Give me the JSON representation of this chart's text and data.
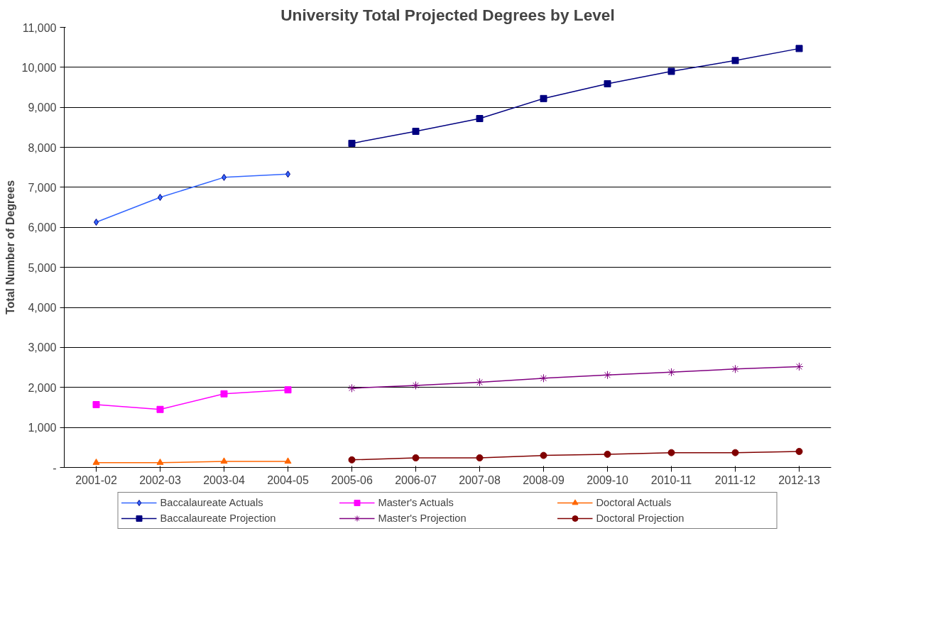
{
  "chart_data": {
    "type": "line",
    "title": "University Total Projected Degrees by Level",
    "ylabel": "Total Number of Degrees",
    "categories": [
      "2001-02",
      "2002-03",
      "2003-04",
      "2004-05",
      "2005-06",
      "2006-07",
      "2007-08",
      "2008-09",
      "2009-10",
      "2010-11",
      "2011-12",
      "2012-13"
    ],
    "series": [
      {
        "name": "Baccalaureate Actuals",
        "color": "#3366ff",
        "marker": "diamond",
        "values": [
          6130,
          6750,
          7250,
          7330,
          null,
          null,
          null,
          null,
          null,
          null,
          null,
          null
        ]
      },
      {
        "name": "Master's Actuals",
        "color": "#ff00ff",
        "marker": "square",
        "values": [
          1570,
          1450,
          1840,
          1940,
          null,
          null,
          null,
          null,
          null,
          null,
          null,
          null
        ]
      },
      {
        "name": "Doctoral Actuals",
        "color": "#ff6600",
        "marker": "triangle",
        "values": [
          120,
          120,
          150,
          150,
          null,
          null,
          null,
          null,
          null,
          null,
          null,
          null
        ]
      },
      {
        "name": "Baccalaureate Projection",
        "color": "#000080",
        "marker": "square",
        "values": [
          null,
          null,
          null,
          null,
          8100,
          8400,
          8720,
          9220,
          9590,
          9900,
          10170,
          10470
        ]
      },
      {
        "name": "Master's Projection",
        "color": "#800080",
        "marker": "cross",
        "values": [
          null,
          null,
          null,
          null,
          1980,
          2050,
          2130,
          2230,
          2310,
          2380,
          2460,
          2520
        ]
      },
      {
        "name": "Doctoral Projection",
        "color": "#800000",
        "marker": "circle",
        "values": [
          null,
          null,
          null,
          null,
          190,
          240,
          240,
          300,
          330,
          370,
          370,
          400
        ]
      }
    ],
    "ylim": [
      0,
      11000
    ],
    "yticks": [
      {
        "value": 0,
        "label": "-"
      },
      {
        "value": 1000,
        "label": "1,000"
      },
      {
        "value": 2000,
        "label": "2,000"
      },
      {
        "value": 3000,
        "label": "3,000"
      },
      {
        "value": 4000,
        "label": "4,000"
      },
      {
        "value": 5000,
        "label": "5,000"
      },
      {
        "value": 6000,
        "label": "6,000"
      },
      {
        "value": 7000,
        "label": "7,000"
      },
      {
        "value": 8000,
        "label": "8,000"
      },
      {
        "value": 9000,
        "label": "9,000"
      },
      {
        "value": 10000,
        "label": "10,000"
      },
      {
        "value": 11000,
        "label": "11,000"
      }
    ],
    "grid": "y",
    "legend": "bottom"
  }
}
